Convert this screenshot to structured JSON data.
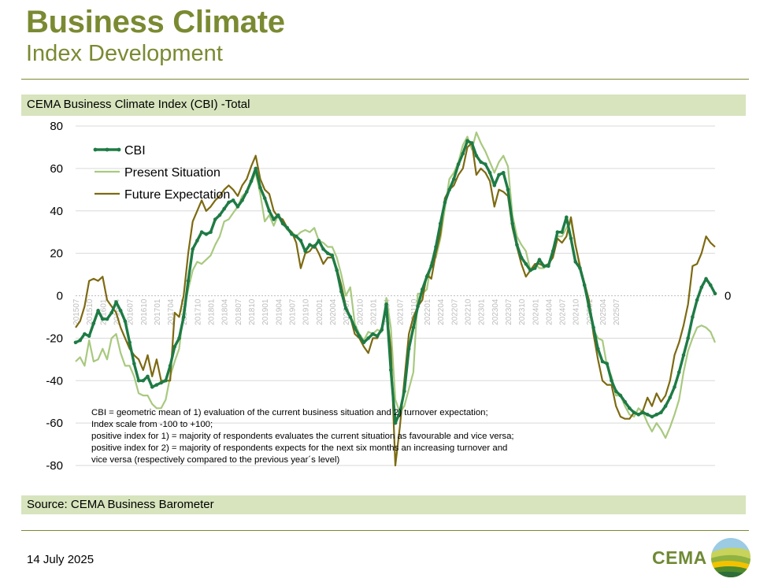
{
  "header": {
    "title": "Business Climate",
    "subtitle": "Index Development"
  },
  "footer": {
    "source": "Source: CEMA Business Barometer",
    "date": "14 July 2025",
    "logo_text": "CEMA"
  },
  "notes": [
    "CBI = geometric mean of 1) evaluation of the current business situation and 2) turnover expectation;",
    "Index scale from -100 to +100;",
    "positive index for 1) = majority of respondents evaluates the current situation as favourable and vice versa;",
    "positive index for 2) = majority of respondents expects for the next six months an increasing turnover and",
    "vice versa (respectively compared to the previous year´s level)"
  ],
  "colors": {
    "cbi": "#1e7b45",
    "present": "#a8c97f",
    "future": "#7d6a12",
    "grid": "#d9d9d9",
    "accent": "#7a8a32",
    "band": "#d7e4bd"
  },
  "chart_data": {
    "type": "line",
    "title": "CEMA Business Climate Index (CBI) -Total",
    "ylim": [
      -80,
      80
    ],
    "yticks": [
      -80,
      -60,
      -40,
      -20,
      0,
      20,
      40,
      60,
      80
    ],
    "zero_label": "0",
    "x_range": [
      "201507",
      "202507"
    ],
    "xtick_labels": [
      "201507",
      "201510",
      "201601",
      "201604",
      "201607",
      "201610",
      "201701",
      "201704",
      "201707",
      "201710",
      "201801",
      "201804",
      "201807",
      "201810",
      "201901",
      "201904",
      "201907",
      "201910",
      "202001",
      "202004",
      "202007",
      "202010",
      "202101",
      "202104",
      "202107",
      "202110",
      "202201",
      "202204",
      "202207",
      "202210",
      "202301",
      "202304",
      "202307",
      "202310",
      "202401",
      "202404",
      "202407",
      "202410",
      "202501",
      "202504",
      "202507"
    ],
    "legend_position": "top-left",
    "series": [
      {
        "name": "CBI",
        "markers": true,
        "values": [
          -22,
          -21,
          -18,
          -19,
          -13,
          -7,
          -11,
          -11,
          -8,
          -3,
          -7,
          -12,
          -22,
          -32,
          -40,
          -40,
          -38,
          -43,
          -42,
          -41,
          -40,
          -33,
          -24,
          -20,
          -10,
          7,
          22,
          26,
          30,
          29,
          30,
          36,
          38,
          41,
          44,
          45,
          42,
          45,
          49,
          54,
          60,
          51,
          46,
          40,
          36,
          38,
          34,
          32,
          29,
          28,
          26,
          21,
          24,
          23,
          26,
          22,
          20,
          19,
          12,
          2,
          -6,
          -10,
          -15,
          -19,
          -22,
          -20,
          -18,
          -19,
          -16,
          -4,
          -35,
          -60,
          -55,
          -45,
          -25,
          -15,
          -5,
          3,
          9,
          14,
          23,
          34,
          44,
          50,
          55,
          62,
          67,
          73,
          72,
          66,
          63,
          62,
          58,
          52,
          57,
          58,
          50,
          34,
          24,
          18,
          15,
          12,
          13,
          17,
          14,
          14,
          21,
          30,
          30,
          37,
          27,
          16,
          13,
          5,
          -5,
          -15,
          -25,
          -31,
          -32,
          -40,
          -45,
          -47,
          -50,
          -53,
          -55,
          -56,
          -55,
          -56,
          -57,
          -56,
          -55,
          -52,
          -48,
          -43,
          -36,
          -28,
          -20,
          -10,
          -2,
          4,
          8,
          5,
          1
        ]
      },
      {
        "name": "Present Situation",
        "markers": false,
        "values": [
          -31,
          -29,
          -33,
          -21,
          -31,
          -30,
          -25,
          -30,
          -20,
          -18,
          -27,
          -33,
          -33,
          -38,
          -46,
          -47,
          -47,
          -51,
          -53,
          -53,
          -49,
          -38,
          -31,
          -25,
          -7,
          3,
          12,
          16,
          15,
          17,
          19,
          24,
          28,
          35,
          36,
          39,
          42,
          47,
          49,
          53,
          58,
          48,
          35,
          38,
          33,
          38,
          35,
          31,
          30,
          28,
          30,
          31,
          30,
          32,
          26,
          25,
          23,
          23,
          18,
          10,
          0,
          4,
          -13,
          -18,
          -21,
          -17,
          -18,
          -16,
          -17,
          -1,
          -15,
          -49,
          -55,
          -52,
          -44,
          -36,
          1,
          1,
          3,
          16,
          18,
          27,
          41,
          55,
          58,
          63,
          71,
          75,
          69,
          77,
          72,
          68,
          63,
          58,
          63,
          66,
          61,
          38,
          28,
          24,
          21,
          12,
          15,
          13,
          13,
          15,
          22,
          28,
          28,
          32,
          35,
          24,
          13,
          5,
          -7,
          -16,
          -20,
          -21,
          -33,
          -38,
          -47,
          -47,
          -52,
          -56,
          -57,
          -53,
          -55,
          -60,
          -64,
          -60,
          -63,
          -67,
          -62,
          -56,
          -49,
          -36,
          -26,
          -20,
          -15,
          -14,
          -15,
          -17,
          -22
        ]
      },
      {
        "name": "Future Expectation",
        "markers": false,
        "values": [
          -15,
          -12,
          -5,
          7,
          8,
          7,
          9,
          -2,
          -5,
          -8,
          -15,
          -20,
          -25,
          -28,
          -30,
          -35,
          -28,
          -38,
          -30,
          -40,
          -40,
          -40,
          -8,
          -10,
          0,
          20,
          35,
          40,
          45,
          40,
          42,
          45,
          47,
          50,
          52,
          50,
          47,
          52,
          55,
          61,
          66,
          55,
          50,
          48,
          40,
          37,
          36,
          32,
          30,
          25,
          13,
          20,
          21,
          24,
          20,
          15,
          18,
          18,
          13,
          5,
          -5,
          -10,
          -18,
          -20,
          -24,
          -27,
          -20,
          -20,
          -15,
          -6,
          -25,
          -80,
          -62,
          -40,
          -18,
          -10,
          -5,
          -2,
          10,
          8,
          20,
          29,
          46,
          50,
          52,
          57,
          60,
          70,
          72,
          57,
          60,
          58,
          54,
          42,
          50,
          49,
          47,
          32,
          23,
          15,
          9,
          12,
          15,
          15,
          14,
          15,
          18,
          27,
          25,
          28,
          37,
          24,
          14,
          6,
          -2,
          -18,
          -30,
          -40,
          -42,
          -42,
          -52,
          -57,
          -58,
          -58,
          -55,
          -56,
          -54,
          -48,
          -52,
          -46,
          -50,
          -47,
          -40,
          -28,
          -22,
          -14,
          -4,
          14,
          15,
          20,
          28,
          25,
          23
        ]
      }
    ]
  }
}
